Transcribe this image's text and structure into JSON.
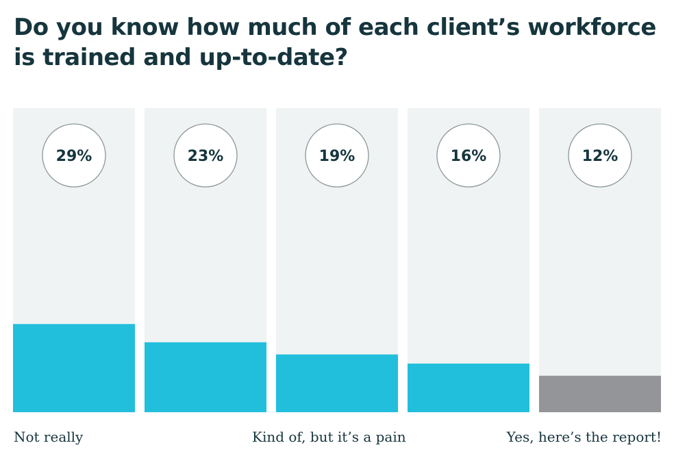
{
  "chart_data": {
    "type": "bar",
    "title": "Do you know how much of each client’s workforce is trained and up-to-date?",
    "categories": [
      "",
      "",
      "",
      "",
      ""
    ],
    "values": [
      29,
      23,
      19,
      16,
      12
    ],
    "value_labels": [
      "29%",
      "23%",
      "19%",
      "16%",
      "12%"
    ],
    "ylim": [
      0,
      100
    ],
    "scale_labels": {
      "left": "Not really",
      "middle": "Kind of, but it’s a pain",
      "right": "Yes, here’s the report!"
    },
    "colors": {
      "bar_fill": "#22bfdd",
      "last_bar_fill": "#949599",
      "track": "#eff3f3",
      "circle_stroke": "#8a9598",
      "text": "#16353d"
    }
  }
}
